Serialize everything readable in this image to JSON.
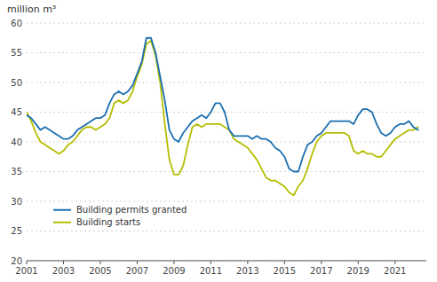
{
  "chart_data": {
    "type": "line",
    "title": "million m³",
    "x": [
      2001.0,
      2001.25,
      2001.5,
      2001.75,
      2002.0,
      2002.25,
      2002.5,
      2002.75,
      2003.0,
      2003.25,
      2003.5,
      2003.75,
      2004.0,
      2004.25,
      2004.5,
      2004.75,
      2005.0,
      2005.25,
      2005.5,
      2005.75,
      2006.0,
      2006.25,
      2006.5,
      2006.75,
      2007.0,
      2007.25,
      2007.5,
      2007.75,
      2008.0,
      2008.25,
      2008.5,
      2008.75,
      2009.0,
      2009.25,
      2009.5,
      2009.75,
      2010.0,
      2010.25,
      2010.5,
      2010.75,
      2011.0,
      2011.25,
      2011.5,
      2011.75,
      2012.0,
      2012.25,
      2012.5,
      2012.75,
      2013.0,
      2013.25,
      2013.5,
      2013.75,
      2014.0,
      2014.25,
      2014.5,
      2014.75,
      2015.0,
      2015.25,
      2015.5,
      2015.75,
      2016.0,
      2016.25,
      2016.5,
      2016.75,
      2017.0,
      2017.25,
      2017.5,
      2017.75,
      2018.0,
      2018.25,
      2018.5,
      2018.75,
      2019.0,
      2019.25,
      2019.5,
      2019.75,
      2020.0,
      2020.25,
      2020.5,
      2020.75,
      2021.0,
      2021.25,
      2021.5,
      2021.75,
      2022.0,
      2022.25
    ],
    "series": [
      {
        "name": "Building permits granted",
        "color": "#1a6faf",
        "values": [
          44.5,
          44.0,
          43.0,
          42.0,
          42.5,
          42.0,
          41.5,
          41.0,
          40.5,
          40.5,
          41.0,
          42.0,
          42.5,
          43.0,
          43.5,
          44.0,
          44.0,
          44.5,
          46.5,
          48.0,
          48.5,
          48.0,
          48.5,
          49.5,
          51.5,
          53.5,
          57.5,
          57.5,
          55.0,
          51.0,
          47.0,
          42.0,
          40.5,
          40.0,
          41.5,
          42.5,
          43.5,
          44.0,
          44.5,
          44.0,
          45.0,
          46.5,
          46.5,
          45.0,
          42.0,
          41.0,
          41.0,
          41.0,
          41.0,
          40.5,
          41.0,
          40.5,
          40.5,
          40.0,
          39.0,
          38.5,
          37.5,
          35.5,
          35.0,
          35.0,
          37.5,
          39.5,
          40.0,
          41.0,
          41.5,
          42.5,
          43.5,
          43.5,
          43.5,
          43.5,
          43.5,
          43.0,
          44.5,
          45.5,
          45.5,
          45.0,
          43.0,
          41.5,
          41.0,
          41.5,
          42.5,
          43.0,
          43.0,
          43.5,
          42.5,
          42.0
        ]
      },
      {
        "name": "Building starts",
        "color": "#b5bd00",
        "values": [
          45.0,
          43.5,
          41.5,
          40.0,
          39.5,
          39.0,
          38.5,
          38.0,
          38.5,
          39.5,
          40.0,
          41.0,
          42.0,
          42.5,
          42.5,
          42.0,
          42.5,
          43.0,
          44.0,
          46.5,
          47.0,
          46.5,
          47.0,
          48.5,
          51.0,
          53.0,
          56.5,
          57.0,
          54.5,
          50.0,
          43.0,
          37.0,
          34.5,
          34.5,
          36.0,
          39.5,
          42.5,
          43.0,
          42.5,
          43.0,
          43.0,
          43.0,
          43.0,
          42.5,
          42.0,
          40.5,
          40.0,
          39.5,
          39.0,
          38.0,
          37.0,
          35.5,
          34.0,
          33.5,
          33.5,
          33.0,
          32.5,
          31.5,
          31.0,
          32.5,
          33.5,
          35.5,
          38.0,
          40.0,
          41.0,
          41.5,
          41.5,
          41.5,
          41.5,
          41.5,
          41.0,
          38.5,
          38.0,
          38.5,
          38.0,
          38.0,
          37.5,
          37.5,
          38.5,
          39.5,
          40.5,
          41.0,
          41.5,
          42.0,
          42.0,
          42.5
        ]
      }
    ],
    "xlim": [
      2001.0,
      2022.7
    ],
    "xticks": [
      2001,
      2003,
      2005,
      2007,
      2009,
      2011,
      2013,
      2015,
      2017,
      2019,
      2021
    ],
    "ylim": [
      20,
      60
    ],
    "yticks": [
      20,
      25,
      30,
      35,
      40,
      45,
      50,
      55,
      60
    ],
    "grid": true,
    "legend": "lower left"
  }
}
